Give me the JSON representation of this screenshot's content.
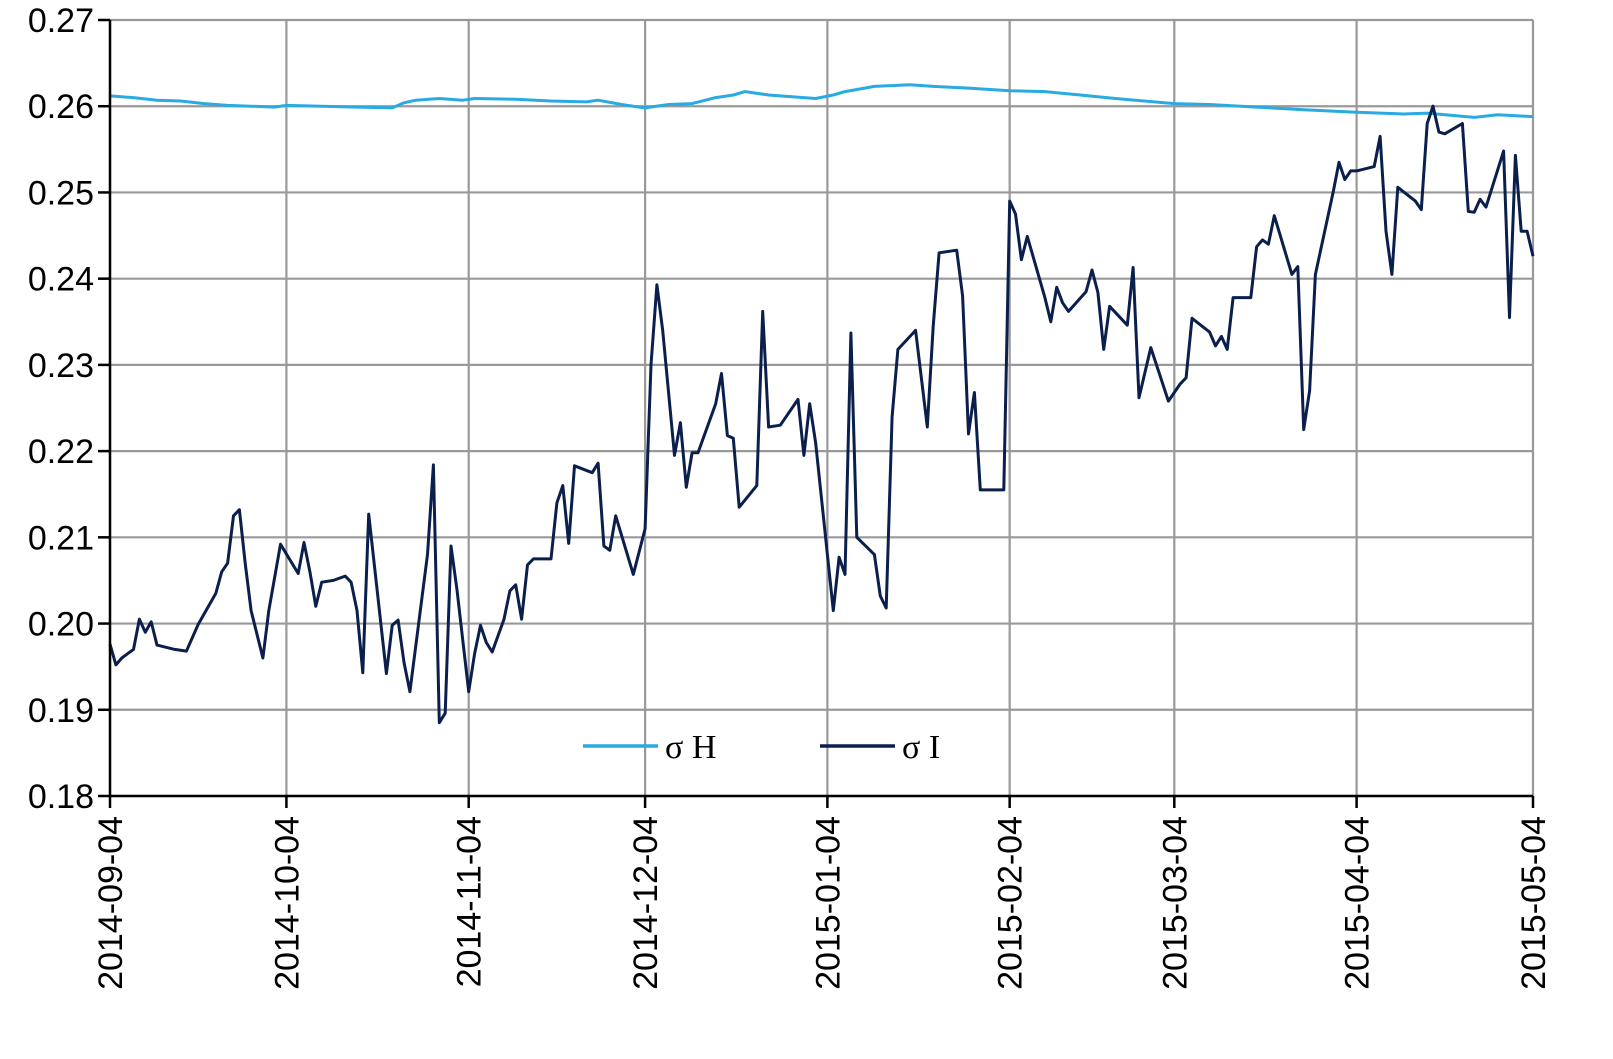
{
  "chart_data": {
    "type": "line",
    "title": "",
    "xlabel": "",
    "ylabel": "",
    "ylim": [
      0.18,
      0.27
    ],
    "yticks": [
      "0.18",
      "0.19",
      "0.20",
      "0.21",
      "0.22",
      "0.23",
      "0.24",
      "0.25",
      "0.26",
      "0.27"
    ],
    "xticks": [
      "2014-09-04",
      "2014-10-04",
      "2014-11-04",
      "2014-12-04",
      "2015-01-04",
      "2015-02-04",
      "2015-03-04",
      "2015-04-04",
      "2015-05-04"
    ],
    "grid": true,
    "legend_position": "bottom-center",
    "colors": {
      "sigma_H": "#29abe2",
      "sigma_I": "#0b1f4d",
      "grid": "#999999",
      "axis": "#000000"
    },
    "series": [
      {
        "name": "σ H",
        "key": "sigma_H",
        "points": [
          [
            "2014-09-04",
            0.2612
          ],
          [
            "2014-09-08",
            0.261
          ],
          [
            "2014-09-12",
            0.2607
          ],
          [
            "2014-09-16",
            0.2606
          ],
          [
            "2014-09-20",
            0.2603
          ],
          [
            "2014-09-24",
            0.2601
          ],
          [
            "2014-09-28",
            0.26
          ],
          [
            "2014-10-02",
            0.2599
          ],
          [
            "2014-10-04",
            0.2601
          ],
          [
            "2014-10-10",
            0.26
          ],
          [
            "2014-10-16",
            0.2599
          ],
          [
            "2014-10-22",
            0.2598
          ],
          [
            "2014-10-24",
            0.2604
          ],
          [
            "2014-10-26",
            0.2607
          ],
          [
            "2014-10-30",
            0.2609
          ],
          [
            "2014-11-03",
            0.2607
          ],
          [
            "2014-11-05",
            0.2609
          ],
          [
            "2014-11-12",
            0.2608
          ],
          [
            "2014-11-18",
            0.2606
          ],
          [
            "2014-11-24",
            0.2605
          ],
          [
            "2014-11-26",
            0.2607
          ],
          [
            "2014-11-30",
            0.2602
          ],
          [
            "2014-12-04",
            0.2598
          ],
          [
            "2014-12-08",
            0.2602
          ],
          [
            "2014-12-12",
            0.2603
          ],
          [
            "2014-12-16",
            0.261
          ],
          [
            "2014-12-19",
            0.2613
          ],
          [
            "2014-12-21",
            0.2617
          ],
          [
            "2014-12-25",
            0.2613
          ],
          [
            "2014-12-29",
            0.2611
          ],
          [
            "2015-01-02",
            0.2609
          ],
          [
            "2015-01-05",
            0.2613
          ],
          [
            "2015-01-07",
            0.2617
          ],
          [
            "2015-01-12",
            0.2623
          ],
          [
            "2015-01-18",
            0.2625
          ],
          [
            "2015-01-22",
            0.2623
          ],
          [
            "2015-01-28",
            0.2621
          ],
          [
            "2015-02-04",
            0.2618
          ],
          [
            "2015-02-10",
            0.2617
          ],
          [
            "2015-02-16",
            0.2613
          ],
          [
            "2015-02-22",
            0.2609
          ],
          [
            "2015-03-04",
            0.2603
          ],
          [
            "2015-03-10",
            0.2602
          ],
          [
            "2015-03-18",
            0.2599
          ],
          [
            "2015-03-26",
            0.2596
          ],
          [
            "2015-04-04",
            0.2593
          ],
          [
            "2015-04-12",
            0.2591
          ],
          [
            "2015-04-16",
            0.2592
          ],
          [
            "2015-04-24",
            0.2587
          ],
          [
            "2015-04-28",
            0.259
          ],
          [
            "2015-05-04",
            0.2588
          ]
        ]
      },
      {
        "name": "σ I",
        "key": "sigma_I",
        "points": [
          [
            "2014-09-04",
            0.1976
          ],
          [
            "2014-09-05",
            0.1952
          ],
          [
            "2014-09-06",
            0.196
          ],
          [
            "2014-09-07",
            0.1965
          ],
          [
            "2014-09-08",
            0.197
          ],
          [
            "2014-09-09",
            0.2005
          ],
          [
            "2014-09-10",
            0.199
          ],
          [
            "2014-09-11",
            0.2002
          ],
          [
            "2014-09-12",
            0.1975
          ],
          [
            "2014-09-15",
            0.197
          ],
          [
            "2014-09-17",
            0.1968
          ],
          [
            "2014-09-19",
            0.1999
          ],
          [
            "2014-09-22",
            0.2035
          ],
          [
            "2014-09-23",
            0.206
          ],
          [
            "2014-09-24",
            0.207
          ],
          [
            "2014-09-25",
            0.2125
          ],
          [
            "2014-09-26",
            0.2132
          ],
          [
            "2014-09-27",
            0.207
          ],
          [
            "2014-09-28",
            0.2015
          ],
          [
            "2014-09-30",
            0.196
          ],
          [
            "2014-10-01",
            0.2015
          ],
          [
            "2014-10-03",
            0.2092
          ],
          [
            "2014-10-06",
            0.2058
          ],
          [
            "2014-10-07",
            0.2094
          ],
          [
            "2014-10-08",
            0.206
          ],
          [
            "2014-10-09",
            0.202
          ],
          [
            "2014-10-10",
            0.2048
          ],
          [
            "2014-10-12",
            0.205
          ],
          [
            "2014-10-14",
            0.2055
          ],
          [
            "2014-10-15",
            0.2048
          ],
          [
            "2014-10-16",
            0.2015
          ],
          [
            "2014-10-17",
            0.1943
          ],
          [
            "2014-10-18",
            0.2127
          ],
          [
            "2014-10-21",
            0.1942
          ],
          [
            "2014-10-22",
            0.1998
          ],
          [
            "2014-10-23",
            0.2004
          ],
          [
            "2014-10-24",
            0.1955
          ],
          [
            "2014-10-25",
            0.1921
          ],
          [
            "2014-10-28",
            0.208
          ],
          [
            "2014-10-29",
            0.2184
          ],
          [
            "2014-10-30",
            0.1885
          ],
          [
            "2014-10-31",
            0.1896
          ],
          [
            "2014-11-01",
            0.209
          ],
          [
            "2014-11-02",
            0.204
          ],
          [
            "2014-11-04",
            0.1921
          ],
          [
            "2014-11-05",
            0.1965
          ],
          [
            "2014-11-06",
            0.1998
          ],
          [
            "2014-11-07",
            0.1978
          ],
          [
            "2014-11-08",
            0.1967
          ],
          [
            "2014-11-10",
            0.2005
          ],
          [
            "2014-11-11",
            0.2038
          ],
          [
            "2014-11-12",
            0.2045
          ],
          [
            "2014-11-13",
            0.2005
          ],
          [
            "2014-11-14",
            0.2068
          ],
          [
            "2014-11-15",
            0.2075
          ],
          [
            "2014-11-18",
            0.2075
          ],
          [
            "2014-11-19",
            0.214
          ],
          [
            "2014-11-20",
            0.216
          ],
          [
            "2014-11-21",
            0.2093
          ],
          [
            "2014-11-22",
            0.2183
          ],
          [
            "2014-11-25",
            0.2175
          ],
          [
            "2014-11-26",
            0.2186
          ],
          [
            "2014-11-27",
            0.209
          ],
          [
            "2014-11-28",
            0.2085
          ],
          [
            "2014-11-29",
            0.2125
          ],
          [
            "2014-12-02",
            0.2057
          ],
          [
            "2014-12-04",
            0.211
          ],
          [
            "2014-12-05",
            0.23
          ],
          [
            "2014-12-06",
            0.2393
          ],
          [
            "2014-12-07",
            0.234
          ],
          [
            "2014-12-09",
            0.2195
          ],
          [
            "2014-12-10",
            0.2233
          ],
          [
            "2014-12-11",
            0.2158
          ],
          [
            "2014-12-12",
            0.2198
          ],
          [
            "2014-12-13",
            0.2198
          ],
          [
            "2014-12-16",
            0.2255
          ],
          [
            "2014-12-17",
            0.229
          ],
          [
            "2014-12-18",
            0.2218
          ],
          [
            "2014-12-19",
            0.2215
          ],
          [
            "2014-12-20",
            0.2135
          ],
          [
            "2014-12-23",
            0.216
          ],
          [
            "2014-12-24",
            0.2362
          ],
          [
            "2014-12-25",
            0.2228
          ],
          [
            "2014-12-27",
            0.223
          ],
          [
            "2014-12-30",
            0.226
          ],
          [
            "2014-12-31",
            0.2195
          ],
          [
            "2015-01-01",
            0.2255
          ],
          [
            "2015-01-02",
            0.221
          ],
          [
            "2015-01-04",
            0.208
          ],
          [
            "2015-01-05",
            0.2015
          ],
          [
            "2015-01-06",
            0.2077
          ],
          [
            "2015-01-07",
            0.2057
          ],
          [
            "2015-01-08",
            0.2337
          ],
          [
            "2015-01-09",
            0.21
          ],
          [
            "2015-01-12",
            0.208
          ],
          [
            "2015-01-13",
            0.2032
          ],
          [
            "2015-01-14",
            0.2018
          ],
          [
            "2015-01-15",
            0.224
          ],
          [
            "2015-01-16",
            0.2318
          ],
          [
            "2015-01-19",
            0.234
          ],
          [
            "2015-01-21",
            0.2228
          ],
          [
            "2015-01-22",
            0.2345
          ],
          [
            "2015-01-23",
            0.243
          ],
          [
            "2015-01-26",
            0.2433
          ],
          [
            "2015-01-27",
            0.238
          ],
          [
            "2015-01-28",
            0.222
          ],
          [
            "2015-01-29",
            0.2268
          ],
          [
            "2015-01-30",
            0.2155
          ],
          [
            "2015-02-03",
            0.2155
          ],
          [
            "2015-02-04",
            0.249
          ],
          [
            "2015-02-05",
            0.2475
          ],
          [
            "2015-02-06",
            0.2422
          ],
          [
            "2015-02-07",
            0.2449
          ],
          [
            "2015-02-10",
            0.2378
          ],
          [
            "2015-02-11",
            0.235
          ],
          [
            "2015-02-12",
            0.239
          ],
          [
            "2015-02-13",
            0.2372
          ],
          [
            "2015-02-14",
            0.2362
          ],
          [
            "2015-02-17",
            0.2385
          ],
          [
            "2015-02-18",
            0.241
          ],
          [
            "2015-02-19",
            0.2384
          ],
          [
            "2015-02-20",
            0.2318
          ],
          [
            "2015-02-21",
            0.2368
          ],
          [
            "2015-02-24",
            0.2346
          ],
          [
            "2015-02-25",
            0.2413
          ],
          [
            "2015-02-26",
            0.2262
          ],
          [
            "2015-02-28",
            0.232
          ],
          [
            "2015-03-03",
            0.2258
          ],
          [
            "2015-03-05",
            0.2278
          ],
          [
            "2015-03-06",
            0.2285
          ],
          [
            "2015-03-07",
            0.2354
          ],
          [
            "2015-03-10",
            0.2338
          ],
          [
            "2015-03-11",
            0.2322
          ],
          [
            "2015-03-12",
            0.2333
          ],
          [
            "2015-03-13",
            0.2318
          ],
          [
            "2015-03-14",
            0.2378
          ],
          [
            "2015-03-17",
            0.2378
          ],
          [
            "2015-03-18",
            0.2437
          ],
          [
            "2015-03-19",
            0.2445
          ],
          [
            "2015-03-20",
            0.244
          ],
          [
            "2015-03-21",
            0.2473
          ],
          [
            "2015-03-24",
            0.2405
          ],
          [
            "2015-03-25",
            0.2414
          ],
          [
            "2015-03-26",
            0.2225
          ],
          [
            "2015-03-27",
            0.227
          ],
          [
            "2015-03-28",
            0.2405
          ],
          [
            "2015-03-31",
            0.25
          ],
          [
            "2015-04-01",
            0.2535
          ],
          [
            "2015-04-02",
            0.2515
          ],
          [
            "2015-04-03",
            0.2525
          ],
          [
            "2015-04-04",
            0.2525
          ],
          [
            "2015-04-07",
            0.253
          ],
          [
            "2015-04-08",
            0.2565
          ],
          [
            "2015-04-09",
            0.2455
          ],
          [
            "2015-04-10",
            0.2405
          ],
          [
            "2015-04-11",
            0.2506
          ],
          [
            "2015-04-14",
            0.249
          ],
          [
            "2015-04-15",
            0.248
          ],
          [
            "2015-04-16",
            0.258
          ],
          [
            "2015-04-17",
            0.26
          ],
          [
            "2015-04-18",
            0.257
          ],
          [
            "2015-04-19",
            0.2568
          ],
          [
            "2015-04-22",
            0.258
          ],
          [
            "2015-04-23",
            0.2478
          ],
          [
            "2015-04-24",
            0.2477
          ],
          [
            "2015-04-25",
            0.2492
          ],
          [
            "2015-04-26",
            0.2483
          ],
          [
            "2015-04-29",
            0.2548
          ],
          [
            "2015-04-30",
            0.2355
          ],
          [
            "2015-05-01",
            0.2543
          ],
          [
            "2015-05-02",
            0.2455
          ],
          [
            "2015-05-03",
            0.2455
          ],
          [
            "2015-05-04",
            0.2426
          ]
        ]
      }
    ]
  }
}
